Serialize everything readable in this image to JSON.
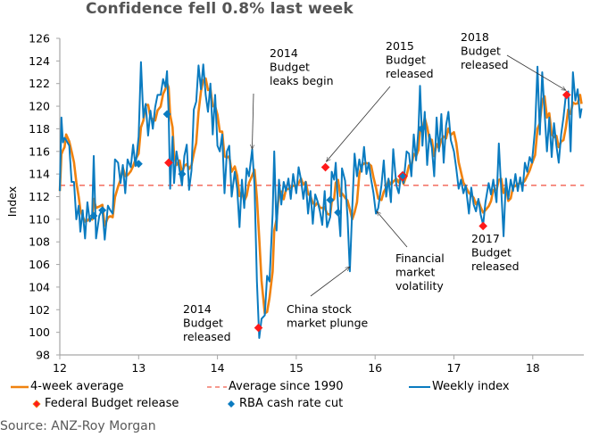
{
  "chart_data": {
    "type": "line",
    "title": "Confidence fell 0.8% last week",
    "xlabel": "",
    "ylabel": "Index",
    "xlim": [
      12,
      18.65
    ],
    "ylim": [
      98,
      126
    ],
    "x_ticks": [
      "12",
      "13",
      "14",
      "15",
      "16",
      "17",
      "18"
    ],
    "y_ticks": [
      "98",
      "100",
      "102",
      "104",
      "106",
      "108",
      "110",
      "112",
      "114",
      "116",
      "118",
      "120",
      "122",
      "124",
      "126"
    ],
    "grid": false,
    "legend_position": "bottom",
    "colors": {
      "weekly": "#0a7bc0",
      "avg4": "#f0820f",
      "avg1990": "#f4786a",
      "budget": "#ff1a1a",
      "rba": "#0a7bc0",
      "axis": "#a6a6a6"
    },
    "reference_lines": [
      {
        "name": "Average since 1990",
        "value": 113.0
      }
    ],
    "series": [
      {
        "name": "Weekly index",
        "points": [
          [
            12.0,
            112.5
          ],
          [
            12.02,
            119.0
          ],
          [
            12.04,
            116.8
          ],
          [
            12.06,
            117.2
          ],
          [
            12.08,
            117.0
          ],
          [
            12.12,
            116.5
          ],
          [
            12.15,
            113.3
          ],
          [
            12.18,
            113.3
          ],
          [
            12.21,
            110.0
          ],
          [
            12.24,
            111.2
          ],
          [
            12.26,
            108.9
          ],
          [
            12.29,
            110.8
          ],
          [
            12.32,
            108.3
          ],
          [
            12.35,
            111.5
          ],
          [
            12.38,
            109.8
          ],
          [
            12.41,
            110.3
          ],
          [
            12.43,
            115.6
          ],
          [
            12.46,
            108.3
          ],
          [
            12.5,
            110.3
          ],
          [
            12.54,
            110.9
          ],
          [
            12.57,
            108.2
          ],
          [
            12.61,
            111.2
          ],
          [
            12.64,
            110.8
          ],
          [
            12.67,
            110.5
          ],
          [
            12.7,
            115.3
          ],
          [
            12.74,
            115.0
          ],
          [
            12.77,
            113.2
          ],
          [
            12.8,
            114.8
          ],
          [
            12.83,
            112.3
          ],
          [
            12.86,
            115.3
          ],
          [
            12.9,
            114.6
          ],
          [
            12.93,
            116.6
          ],
          [
            12.96,
            114.7
          ],
          [
            13.0,
            117.3
          ],
          [
            13.03,
            123.9
          ],
          [
            13.06,
            119.0
          ],
          [
            13.09,
            120.2
          ],
          [
            13.12,
            117.4
          ],
          [
            13.15,
            119.6
          ],
          [
            13.18,
            118.0
          ],
          [
            13.21,
            119.9
          ],
          [
            13.24,
            121.0
          ],
          [
            13.28,
            121.0
          ],
          [
            13.31,
            122.4
          ],
          [
            13.34,
            121.7
          ],
          [
            13.36,
            123.1
          ],
          [
            13.38,
            119.4
          ],
          [
            13.4,
            112.7
          ],
          [
            13.43,
            117.3
          ],
          [
            13.45,
            113.2
          ],
          [
            13.48,
            116.0
          ],
          [
            13.52,
            114.3
          ],
          [
            13.55,
            113.0
          ],
          [
            13.58,
            115.6
          ],
          [
            13.61,
            116.6
          ],
          [
            13.64,
            112.6
          ],
          [
            13.67,
            114.3
          ],
          [
            13.7,
            119.7
          ],
          [
            13.73,
            120.4
          ],
          [
            13.76,
            123.6
          ],
          [
            13.79,
            121.5
          ],
          [
            13.82,
            123.7
          ],
          [
            13.85,
            121.0
          ],
          [
            13.88,
            119.5
          ],
          [
            13.91,
            122.0
          ],
          [
            13.94,
            117.5
          ],
          [
            13.97,
            121.0
          ],
          [
            14.0,
            116.5
          ],
          [
            14.03,
            116.0
          ],
          [
            14.06,
            117.5
          ],
          [
            14.09,
            112.3
          ],
          [
            14.12,
            116.0
          ],
          [
            14.15,
            116.5
          ],
          [
            14.18,
            112.0
          ],
          [
            14.22,
            114.2
          ],
          [
            14.25,
            112.7
          ],
          [
            14.28,
            109.3
          ],
          [
            14.31,
            113.5
          ],
          [
            14.34,
            111.0
          ],
          [
            14.37,
            114.5
          ],
          [
            14.4,
            113.8
          ],
          [
            14.44,
            116.2
          ],
          [
            14.47,
            113.0
          ],
          [
            14.5,
            104.5
          ],
          [
            14.53,
            99.5
          ],
          [
            14.56,
            101.2
          ],
          [
            14.6,
            101.5
          ],
          [
            14.63,
            105.0
          ],
          [
            14.66,
            104.5
          ],
          [
            14.7,
            110.5
          ],
          [
            14.72,
            116.0
          ],
          [
            14.75,
            109.0
          ],
          [
            14.78,
            113.5
          ],
          [
            14.81,
            111.3
          ],
          [
            14.84,
            113.3
          ],
          [
            14.87,
            112.5
          ],
          [
            14.9,
            113.6
          ],
          [
            14.93,
            111.8
          ],
          [
            14.96,
            114.0
          ],
          [
            15.0,
            112.3
          ],
          [
            15.03,
            114.6
          ],
          [
            15.06,
            113.5
          ],
          [
            15.09,
            111.8
          ],
          [
            15.12,
            113.3
          ],
          [
            15.15,
            110.5
          ],
          [
            15.18,
            112.5
          ],
          [
            15.21,
            109.6
          ],
          [
            15.24,
            112.2
          ],
          [
            15.27,
            111.6
          ],
          [
            15.3,
            110.7
          ],
          [
            15.33,
            109.5
          ],
          [
            15.36,
            112.5
          ],
          [
            15.39,
            109.3
          ],
          [
            15.43,
            110.2
          ],
          [
            15.45,
            114.2
          ],
          [
            15.48,
            113.5
          ],
          [
            15.5,
            115.0
          ],
          [
            15.53,
            111.2
          ],
          [
            15.56,
            108.5
          ],
          [
            15.58,
            114.5
          ],
          [
            15.62,
            113.4
          ],
          [
            15.65,
            110.2
          ],
          [
            15.68,
            105.4
          ],
          [
            15.71,
            111.0
          ],
          [
            15.74,
            115.8
          ],
          [
            15.77,
            113.8
          ],
          [
            15.8,
            115.3
          ],
          [
            15.83,
            114.2
          ],
          [
            15.86,
            116.4
          ],
          [
            15.89,
            114.0
          ],
          [
            15.92,
            115.0
          ],
          [
            15.95,
            113.5
          ],
          [
            15.98,
            112.3
          ],
          [
            16.01,
            110.5
          ],
          [
            16.04,
            111.0
          ],
          [
            16.08,
            113.0
          ],
          [
            16.11,
            115.2
          ],
          [
            16.14,
            112.0
          ],
          [
            16.17,
            113.6
          ],
          [
            16.2,
            111.5
          ],
          [
            16.23,
            116.2
          ],
          [
            16.27,
            113.0
          ],
          [
            16.3,
            112.3
          ],
          [
            16.33,
            114.0
          ],
          [
            16.36,
            113.2
          ],
          [
            16.4,
            116.0
          ],
          [
            16.43,
            115.8
          ],
          [
            16.46,
            113.8
          ],
          [
            16.49,
            117.5
          ],
          [
            16.52,
            115.2
          ],
          [
            16.55,
            118.0
          ],
          [
            16.57,
            121.8
          ],
          [
            16.6,
            116.5
          ],
          [
            16.63,
            119.5
          ],
          [
            16.66,
            114.8
          ],
          [
            16.69,
            117.5
          ],
          [
            16.72,
            116.3
          ],
          [
            16.75,
            113.8
          ],
          [
            16.78,
            119.0
          ],
          [
            16.81,
            116.0
          ],
          [
            16.84,
            119.3
          ],
          [
            16.87,
            115.0
          ],
          [
            16.9,
            118.3
          ],
          [
            16.93,
            119.5
          ],
          [
            16.96,
            117.0
          ],
          [
            17.0,
            116.0
          ],
          [
            17.03,
            114.5
          ],
          [
            17.06,
            112.7
          ],
          [
            17.09,
            113.5
          ],
          [
            17.12,
            112.3
          ],
          [
            17.15,
            113.0
          ],
          [
            17.19,
            110.5
          ],
          [
            17.22,
            112.8
          ],
          [
            17.25,
            111.3
          ],
          [
            17.28,
            110.7
          ],
          [
            17.31,
            111.8
          ],
          [
            17.34,
            110.4
          ],
          [
            17.37,
            109.5
          ],
          [
            17.4,
            111.5
          ],
          [
            17.44,
            113.2
          ],
          [
            17.47,
            112.2
          ],
          [
            17.5,
            113.5
          ],
          [
            17.54,
            111.5
          ],
          [
            17.57,
            116.7
          ],
          [
            17.6,
            112.6
          ],
          [
            17.63,
            108.5
          ],
          [
            17.66,
            113.6
          ],
          [
            17.69,
            111.8
          ],
          [
            17.72,
            113.5
          ],
          [
            17.75,
            112.5
          ],
          [
            17.78,
            114.0
          ],
          [
            17.81,
            112.5
          ],
          [
            17.84,
            113.7
          ],
          [
            17.87,
            112.5
          ],
          [
            17.9,
            115.0
          ],
          [
            17.93,
            114.2
          ],
          [
            17.96,
            115.5
          ],
          [
            17.99,
            115.0
          ],
          [
            18.03,
            118.0
          ],
          [
            18.06,
            123.5
          ],
          [
            18.09,
            117.5
          ],
          [
            18.12,
            123.0
          ],
          [
            18.15,
            119.5
          ],
          [
            18.18,
            116.0
          ],
          [
            18.21,
            119.0
          ],
          [
            18.24,
            115.5
          ],
          [
            18.27,
            118.5
          ],
          [
            18.3,
            116.5
          ],
          [
            18.33,
            115.0
          ],
          [
            18.36,
            117.5
          ],
          [
            18.39,
            119.0
          ],
          [
            18.42,
            121.0
          ],
          [
            18.45,
            121.3
          ],
          [
            18.48,
            116.0
          ],
          [
            18.51,
            123.0
          ],
          [
            18.54,
            120.5
          ],
          [
            18.57,
            121.5
          ],
          [
            18.6,
            119.0
          ],
          [
            18.62,
            119.8
          ]
        ]
      },
      {
        "name": "4-week average",
        "derived_from": "Weekly index",
        "window": 4
      }
    ],
    "markers": {
      "Federal Budget release": [
        [
          13.38,
          115.0
        ],
        [
          14.52,
          100.4
        ],
        [
          15.37,
          114.6
        ],
        [
          16.35,
          113.8
        ],
        [
          17.37,
          109.4
        ],
        [
          18.43,
          121.0
        ]
      ],
      "RBA cash rate cut": [
        [
          12.43,
          110.3
        ],
        [
          12.54,
          110.8
        ],
        [
          13.0,
          114.9
        ],
        [
          13.36,
          119.3
        ],
        [
          13.55,
          114.0
        ],
        [
          15.43,
          111.7
        ],
        [
          15.53,
          110.6
        ],
        [
          16.35,
          113.9
        ],
        [
          16.59,
          118.0
        ]
      ]
    },
    "annotations": [
      {
        "id": "budget-2014-leaks",
        "lines": [
          "2014",
          "Budget",
          "leaks begin"
        ],
        "points_to": [
          14.44,
          116.2
        ]
      },
      {
        "id": "budget-2014-released",
        "lines": [
          "2014",
          "Budget",
          "released"
        ],
        "points_to": null
      },
      {
        "id": "budget-2015-released",
        "lines": [
          "2015",
          "Budget",
          "released"
        ],
        "points_to": [
          15.38,
          115.1
        ]
      },
      {
        "id": "china-plunge",
        "lines": [
          "China stock",
          "market plunge"
        ],
        "points_to": [
          15.68,
          105.8
        ]
      },
      {
        "id": "financial-volatility",
        "lines": [
          "Financial",
          "market",
          "volatility"
        ],
        "points_to": [
          16.02,
          110.7
        ]
      },
      {
        "id": "budget-2017-released",
        "lines": [
          "2017",
          "Budget",
          "released"
        ],
        "points_to": null
      },
      {
        "id": "budget-2018-released",
        "lines": [
          "2018",
          "Budget",
          "released"
        ],
        "points_to": [
          18.42,
          121.4
        ]
      }
    ]
  },
  "legend": {
    "avg4": "4-week average",
    "avg1990": "Average since 1990",
    "weekly": "Weekly index",
    "budget": "Federal Budget release",
    "rba": "RBA cash rate cut"
  },
  "source": "Source: ANZ-Roy Morgan"
}
